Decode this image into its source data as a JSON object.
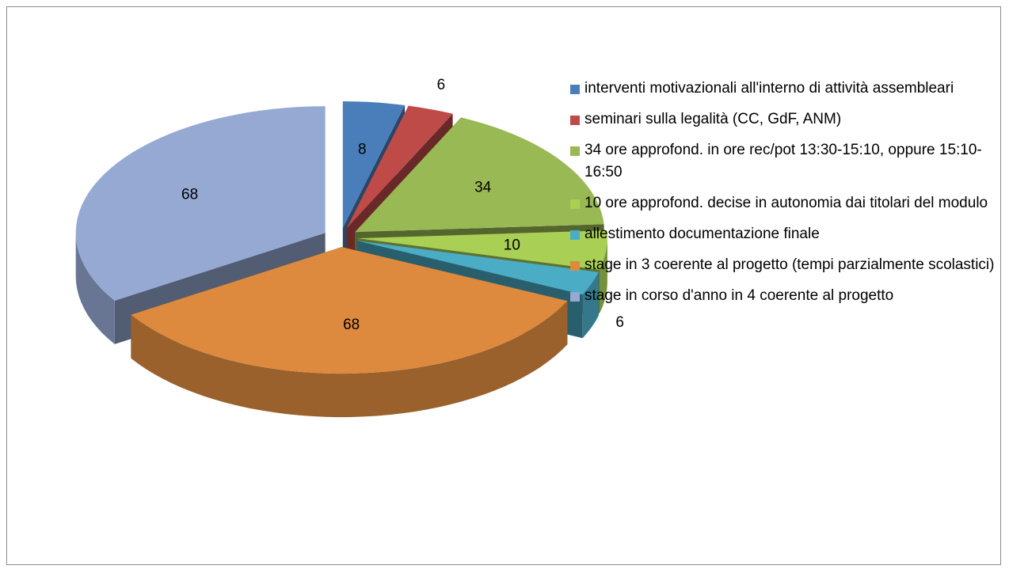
{
  "chart_data": {
    "type": "pie3d",
    "categories": [
      "interventi motivazionali all'interno di attività assembleari",
      "seminari sulla legalità (CC, GdF, ANM)",
      "34 ore approfond. in ore rec/pot 13:30-15:10, oppure 15:10-16:50",
      "10 ore approfond. decise in autonomia dai titolari del modulo",
      "allestimento documentazione finale",
      "stage in 3 coerente al progetto (tempi parzialmente scolastici)",
      "stage in corso d'anno in 4 coerente al progetto"
    ],
    "values": [
      8,
      6,
      34,
      10,
      6,
      68,
      68
    ],
    "colors": [
      "#4a7ebb",
      "#be4b48",
      "#98b954",
      "#a9cf54",
      "#4bacc6",
      "#dd8a3f",
      "#95a9d3"
    ],
    "legend": "right"
  }
}
